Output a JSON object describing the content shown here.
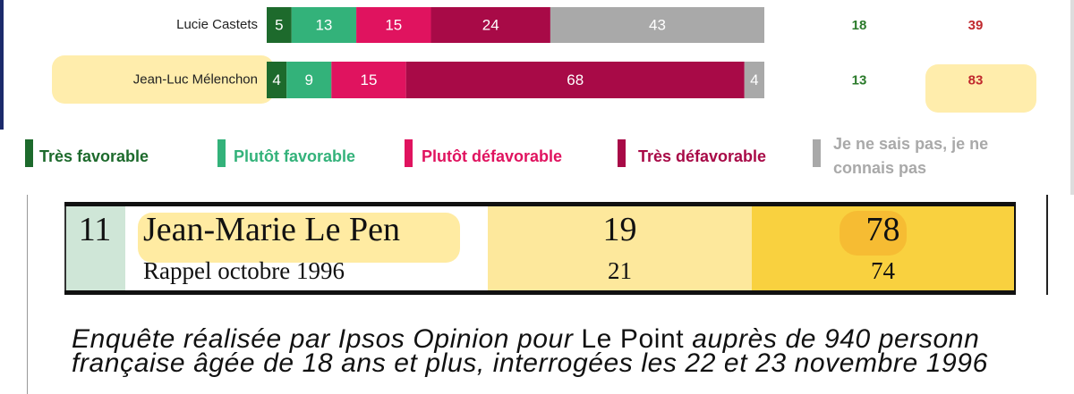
{
  "chart_data": {
    "type": "stacked_barh",
    "categories": [
      "Lucie Castets",
      "Jean-Luc Mélenchon"
    ],
    "series": [
      {
        "name": "Très favorable",
        "color": "#1d6a2c",
        "values": [
          5,
          4
        ]
      },
      {
        "name": "Plutôt favorable",
        "color": "#33b27a",
        "values": [
          13,
          9
        ]
      },
      {
        "name": "Plutôt défavorable",
        "color": "#e0135f",
        "values": [
          15,
          15
        ]
      },
      {
        "name": "Très défavorable",
        "color": "#a80a47",
        "values": [
          24,
          68
        ]
      },
      {
        "name": "Je ne sais pas, je ne connais pas",
        "color": "#a9a9a9",
        "values": [
          43,
          4
        ]
      }
    ],
    "xlim": [
      0,
      100
    ],
    "favorable_totals": {
      "color": "#2a7a2a",
      "values": [
        18,
        13
      ]
    },
    "unfavorable_totals": {
      "color": "#c0282d",
      "values": [
        39,
        83
      ]
    }
  },
  "table": {
    "rank": "11",
    "rows": [
      [
        "Jean-Marie Le Pen",
        19,
        78
      ],
      [
        "Rappel octobre 1996",
        21,
        74
      ]
    ]
  },
  "footnote": {
    "line1": [
      "Enquête réalisée par Ipsos Opinion pour",
      "Le Point",
      "auprès de 940 personn"
    ],
    "line2": "française âgée de 18 ans et plus, interrogées les 22 et 23 novembre 1996"
  }
}
